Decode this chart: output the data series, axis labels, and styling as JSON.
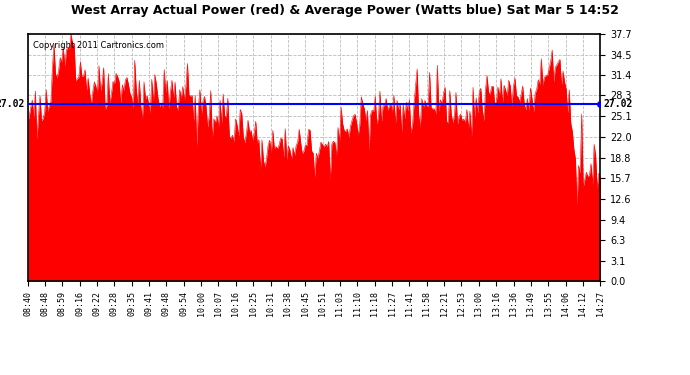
{
  "title": "West Array Actual Power (red) & Average Power (Watts blue) Sat Mar 5 14:52",
  "copyright": "Copyright 2011 Cartronics.com",
  "average_power": 27.02,
  "ylim": [
    0.0,
    37.7
  ],
  "yticks": [
    0.0,
    3.1,
    6.3,
    9.4,
    12.6,
    15.7,
    18.8,
    22.0,
    25.1,
    28.3,
    31.4,
    34.5,
    37.7
  ],
  "bar_color": "#FF0000",
  "avg_line_color": "#0000FF",
  "grid_color": "#BBBBBB",
  "bg_color": "#FFFFFF",
  "plot_bg_color": "#FFFFFF",
  "time_labels": [
    "08:40",
    "08:48",
    "08:59",
    "09:16",
    "09:22",
    "09:28",
    "09:35",
    "09:41",
    "09:48",
    "09:54",
    "10:00",
    "10:07",
    "10:16",
    "10:25",
    "10:31",
    "10:38",
    "10:45",
    "10:51",
    "11:03",
    "11:10",
    "11:18",
    "11:27",
    "11:41",
    "11:58",
    "12:21",
    "12:53",
    "13:00",
    "13:16",
    "13:36",
    "13:49",
    "13:55",
    "14:06",
    "14:12",
    "14:27"
  ],
  "figsize": [
    6.9,
    3.75
  ],
  "dpi": 100
}
